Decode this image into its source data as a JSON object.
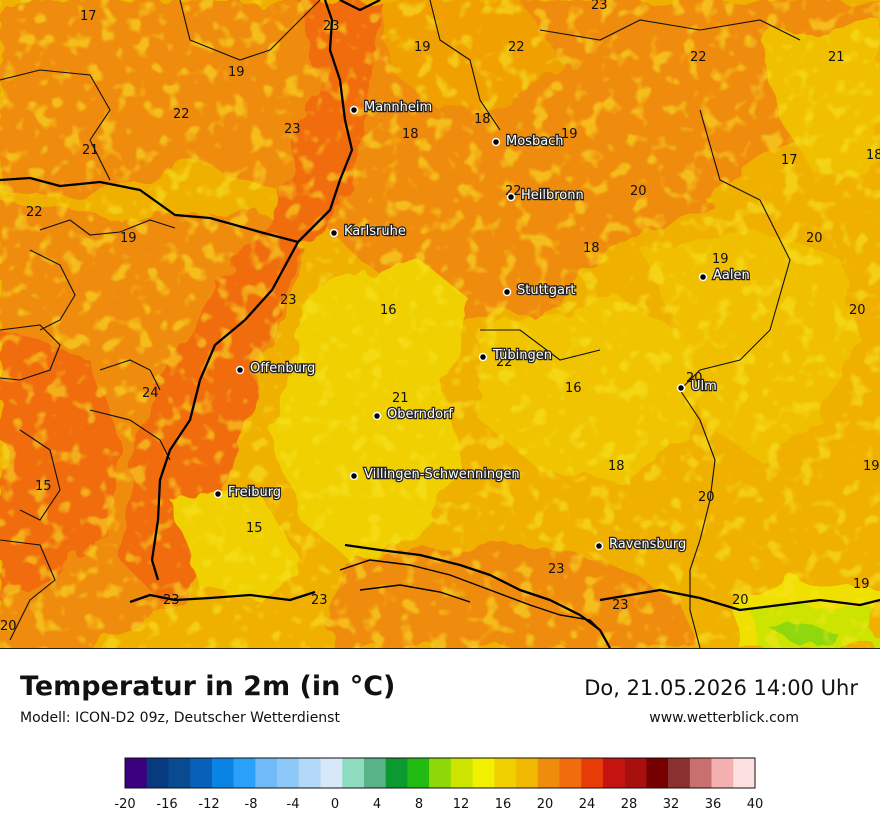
{
  "title": "Temperatur in 2m (in °C)",
  "model": "Modell: ICON-D2 09z, Deutscher Wetterdienst",
  "datetime": "Do, 21.05.2026 14:00 Uhr",
  "website": "www.wetterblick.com",
  "cities": [
    {
      "name": "Mannheim"
    },
    {
      "name": "Mosbach"
    },
    {
      "name": "Heilbronn"
    },
    {
      "name": "Karlsruhe"
    },
    {
      "name": "Aalen"
    },
    {
      "name": "Stuttgart"
    },
    {
      "name": "Tübingen"
    },
    {
      "name": "Offenburg"
    },
    {
      "name": "Ulm"
    },
    {
      "name": "Oberndorf"
    },
    {
      "name": "Villingen-Schwenningen"
    },
    {
      "name": "Freiburg"
    },
    {
      "name": "Ravensburg"
    }
  ],
  "temperature_labels": [
    "17",
    "23",
    "19",
    "22",
    "23",
    "21",
    "19",
    "22",
    "22",
    "23",
    "18",
    "18",
    "19",
    "17",
    "18",
    "22",
    "21",
    "20",
    "22",
    "19",
    "19",
    "20",
    "18",
    "23",
    "16",
    "20",
    "22",
    "24",
    "21",
    "16",
    "20",
    "15",
    "18",
    "20",
    "19",
    "15",
    "23",
    "20",
    "19",
    "23",
    "23",
    "23",
    "20",
    "23",
    "22",
    "23"
  ],
  "legend": {
    "ticks": [
      "-20",
      "-16",
      "-12",
      "-8",
      "-4",
      "0",
      "4",
      "8",
      "12",
      "16",
      "20",
      "24",
      "28",
      "32",
      "36",
      "40"
    ],
    "colors": [
      "#3a0080",
      "#083a80",
      "#0a4a90",
      "#0860b8",
      "#0a84e4",
      "#2aa0f8",
      "#70baf8",
      "#8ec8f8",
      "#b4d8f8",
      "#d8e8fa",
      "#90dcc0",
      "#58b488",
      "#0c9a30",
      "#22bb12",
      "#8ed808",
      "#cce400",
      "#f0f000",
      "#f0d000",
      "#f0b800",
      "#f08c0c",
      "#f06c0c",
      "#e83c08",
      "#c41410",
      "#a81010",
      "#760000",
      "#8a3030",
      "#c87070",
      "#f4b0b0",
      "#fde0e0"
    ]
  }
}
